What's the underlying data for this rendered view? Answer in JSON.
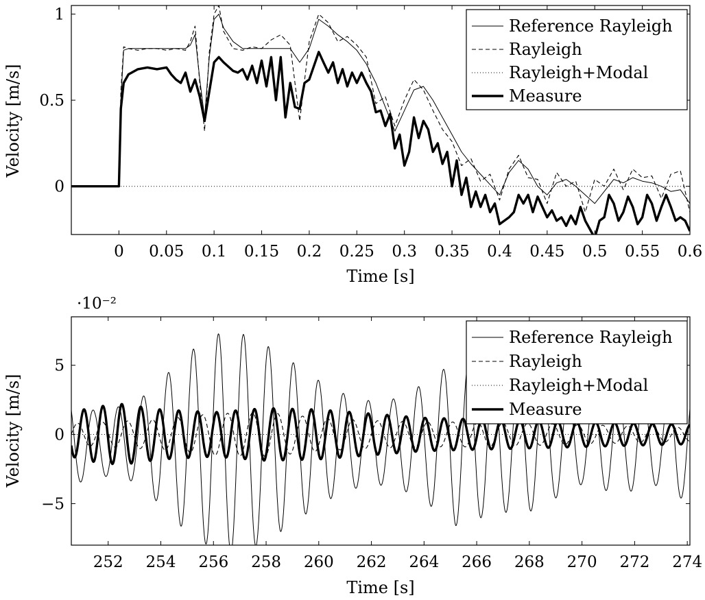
{
  "chart_data": [
    {
      "type": "line",
      "xlabel": "Time [s]",
      "ylabel": "Velocity [m/s]",
      "xlim": [
        -0.05,
        0.6
      ],
      "ylim": [
        -0.28,
        1.05
      ],
      "xticks": [
        0,
        0.05,
        0.1,
        0.15,
        0.2,
        0.25,
        0.3,
        0.35,
        0.4,
        0.45,
        0.5,
        0.55,
        0.6
      ],
      "xtick_labels": [
        "0",
        "0.05",
        "0.1",
        "0.15",
        "0.2",
        "0.25",
        "0.3",
        "0.35",
        "0.4",
        "0.45",
        "0.5",
        "0.55",
        "0.6"
      ],
      "yticks": [
        0,
        0.5,
        1
      ],
      "ytick_labels": [
        "0",
        "0.5",
        "1"
      ],
      "legend_position": "top-right",
      "series": [
        {
          "name": "Reference Rayleigh",
          "style": "solid-thin",
          "x": [
            -0.05,
            0.0,
            0.002,
            0.005,
            0.01,
            0.02,
            0.03,
            0.04,
            0.05,
            0.06,
            0.07,
            0.075,
            0.08,
            0.085,
            0.09,
            0.095,
            0.1,
            0.105,
            0.11,
            0.12,
            0.13,
            0.14,
            0.15,
            0.16,
            0.17,
            0.18,
            0.19,
            0.2,
            0.21,
            0.22,
            0.23,
            0.24,
            0.25,
            0.26,
            0.27,
            0.28,
            0.29,
            0.3,
            0.31,
            0.32,
            0.33,
            0.34,
            0.35,
            0.36,
            0.37,
            0.38,
            0.39,
            0.4,
            0.41,
            0.42,
            0.43,
            0.44,
            0.45,
            0.46,
            0.47,
            0.48,
            0.49,
            0.5,
            0.51,
            0.52,
            0.53,
            0.54,
            0.55,
            0.56,
            0.57,
            0.58,
            0.59,
            0.6
          ],
          "y": [
            0,
            0,
            0.5,
            0.79,
            0.8,
            0.8,
            0.8,
            0.8,
            0.8,
            0.8,
            0.8,
            0.82,
            0.88,
            0.62,
            0.4,
            0.75,
            0.97,
            1.0,
            0.92,
            0.84,
            0.8,
            0.8,
            0.8,
            0.8,
            0.8,
            0.8,
            0.72,
            0.8,
            0.97,
            0.93,
            0.88,
            0.84,
            0.79,
            0.71,
            0.6,
            0.46,
            0.32,
            0.44,
            0.56,
            0.58,
            0.5,
            0.4,
            0.3,
            0.2,
            0.13,
            0.07,
            0.01,
            -0.05,
            0.08,
            0.15,
            0.1,
            0.0,
            -0.05,
            0.02,
            0.04,
            0.0,
            -0.05,
            -0.1,
            -0.03,
            0.04,
            0.02,
            0.05,
            0.03,
            0.02,
            0.0,
            -0.03,
            -0.02,
            -0.1
          ]
        },
        {
          "name": "Rayleigh",
          "style": "dashed",
          "x": [
            -0.05,
            0.0,
            0.002,
            0.005,
            0.01,
            0.02,
            0.03,
            0.04,
            0.05,
            0.06,
            0.07,
            0.075,
            0.08,
            0.085,
            0.09,
            0.095,
            0.1,
            0.105,
            0.11,
            0.12,
            0.13,
            0.14,
            0.15,
            0.16,
            0.17,
            0.18,
            0.19,
            0.2,
            0.21,
            0.22,
            0.23,
            0.24,
            0.25,
            0.26,
            0.27,
            0.28,
            0.29,
            0.3,
            0.31,
            0.32,
            0.33,
            0.34,
            0.35,
            0.36,
            0.37,
            0.38,
            0.39,
            0.4,
            0.41,
            0.42,
            0.43,
            0.44,
            0.45,
            0.46,
            0.47,
            0.48,
            0.49,
            0.5,
            0.51,
            0.52,
            0.53,
            0.54,
            0.55,
            0.56,
            0.57,
            0.58,
            0.59,
            0.6
          ],
          "y": [
            0,
            0,
            0.55,
            0.81,
            0.8,
            0.79,
            0.8,
            0.8,
            0.79,
            0.8,
            0.79,
            0.84,
            0.93,
            0.6,
            0.32,
            0.78,
            1.0,
            1.05,
            0.9,
            0.8,
            0.79,
            0.81,
            0.8,
            0.85,
            0.88,
            0.82,
            0.38,
            0.84,
            1.0,
            0.95,
            0.84,
            0.87,
            0.82,
            0.75,
            0.48,
            0.52,
            0.35,
            0.5,
            0.62,
            0.56,
            0.44,
            0.33,
            0.26,
            0.12,
            0.16,
            0.03,
            0.07,
            -0.08,
            0.1,
            0.18,
            0.05,
            0.04,
            -0.1,
            0.08,
            0.0,
            0.03,
            -0.15,
            0.04,
            0.0,
            0.1,
            -0.02,
            0.1,
            0.05,
            0.06,
            -0.07,
            0.07,
            0.09,
            -0.15
          ]
        },
        {
          "name": "Rayleigh+Modal",
          "style": "dotted",
          "x": [
            -0.05,
            0.6
          ],
          "y": [
            0,
            0
          ]
        },
        {
          "name": "Measure",
          "style": "solid-thick",
          "x": [
            -0.05,
            -0.01,
            0.0,
            0.002,
            0.005,
            0.01,
            0.02,
            0.03,
            0.04,
            0.05,
            0.055,
            0.06,
            0.065,
            0.07,
            0.075,
            0.08,
            0.085,
            0.09,
            0.095,
            0.1,
            0.105,
            0.11,
            0.12,
            0.125,
            0.13,
            0.135,
            0.14,
            0.145,
            0.15,
            0.155,
            0.16,
            0.165,
            0.17,
            0.175,
            0.18,
            0.185,
            0.19,
            0.195,
            0.2,
            0.21,
            0.215,
            0.22,
            0.225,
            0.23,
            0.235,
            0.24,
            0.245,
            0.25,
            0.255,
            0.26,
            0.265,
            0.27,
            0.275,
            0.28,
            0.285,
            0.29,
            0.295,
            0.3,
            0.305,
            0.31,
            0.315,
            0.32,
            0.325,
            0.33,
            0.335,
            0.34,
            0.345,
            0.35,
            0.355,
            0.36,
            0.365,
            0.37,
            0.375,
            0.38,
            0.385,
            0.39,
            0.395,
            0.4,
            0.405,
            0.41,
            0.415,
            0.42,
            0.425,
            0.43,
            0.435,
            0.44,
            0.445,
            0.45,
            0.455,
            0.46,
            0.465,
            0.47,
            0.475,
            0.48,
            0.485,
            0.49,
            0.495,
            0.5,
            0.505,
            0.51,
            0.515,
            0.52,
            0.525,
            0.53,
            0.535,
            0.54,
            0.545,
            0.55,
            0.555,
            0.56,
            0.565,
            0.57,
            0.575,
            0.58,
            0.585,
            0.59,
            0.595,
            0.6
          ],
          "y": [
            0,
            0,
            0,
            0.45,
            0.6,
            0.65,
            0.68,
            0.69,
            0.68,
            0.69,
            0.65,
            0.62,
            0.6,
            0.66,
            0.55,
            0.62,
            0.52,
            0.38,
            0.55,
            0.72,
            0.75,
            0.72,
            0.67,
            0.66,
            0.68,
            0.62,
            0.7,
            0.6,
            0.73,
            0.58,
            0.75,
            0.5,
            0.75,
            0.4,
            0.6,
            0.46,
            0.45,
            0.6,
            0.62,
            0.78,
            0.72,
            0.66,
            0.72,
            0.6,
            0.68,
            0.58,
            0.66,
            0.6,
            0.66,
            0.6,
            0.55,
            0.43,
            0.44,
            0.35,
            0.42,
            0.22,
            0.3,
            0.12,
            0.2,
            0.4,
            0.28,
            0.38,
            0.33,
            0.2,
            0.25,
            0.13,
            0.2,
            0.0,
            0.15,
            -0.05,
            0.05,
            -0.12,
            -0.03,
            -0.12,
            -0.05,
            -0.15,
            -0.1,
            -0.22,
            -0.2,
            -0.18,
            -0.15,
            -0.05,
            -0.1,
            -0.05,
            -0.15,
            -0.06,
            -0.12,
            -0.18,
            -0.14,
            -0.2,
            -0.18,
            -0.23,
            -0.17,
            -0.22,
            -0.12,
            -0.2,
            -0.25,
            -0.3,
            -0.2,
            -0.18,
            -0.05,
            -0.1,
            -0.2,
            -0.15,
            -0.06,
            -0.12,
            -0.22,
            -0.18,
            -0.05,
            -0.1,
            -0.2,
            -0.12,
            -0.05,
            -0.12,
            -0.2,
            -0.18,
            -0.2,
            -0.26
          ]
        }
      ]
    },
    {
      "type": "line",
      "xlabel": "Time [s]",
      "ylabel": "Velocity [m/s]",
      "y_scale_label": "·10⁻²",
      "xlim": [
        250.6,
        274.1
      ],
      "ylim": [
        -8.0,
        8.5
      ],
      "xticks": [
        252,
        254,
        256,
        258,
        260,
        262,
        264,
        266,
        268,
        270,
        272,
        274
      ],
      "xtick_labels": [
        "252",
        "254",
        "256",
        "258",
        "260",
        "262",
        "264",
        "266",
        "268",
        "270",
        "272",
        "274"
      ],
      "yticks": [
        -5,
        0,
        5
      ],
      "ytick_labels": [
        "−5",
        "0",
        "5"
      ],
      "legend_position": "top-right",
      "series": [
        {
          "name": "Reference Rayleigh",
          "style": "solid-thin",
          "osc": {
            "period": 0.95,
            "phase": 250.25,
            "amp_t": [
              250.6,
              251.5,
              253.0,
              254.0,
              255.0,
              256.3,
              257.3,
              258.5,
              260.0,
              261.0,
              262.0,
              263.0,
              264.2,
              265.2,
              266.2,
              267.2,
              268.0,
              269.0,
              270.0,
              271.0,
              272.0,
              273.0,
              273.6,
              274.1
            ],
            "amp_v": [
              3.2,
              2.3,
              2.8,
              4.5,
              6.5,
              8.0,
              7.8,
              6.5,
              4.5,
              3.5,
              3.0,
              3.2,
              4.5,
              6.0,
              5.4,
              5.0,
              5.0,
              4.0,
              3.0,
              3.5,
              3.5,
              3.0,
              4.0,
              4.0
            ],
            "offset": -0.6
          }
        },
        {
          "name": "Rayleigh",
          "style": "dashed",
          "osc": {
            "period": 0.95,
            "phase": 250.6,
            "amp_t": [
              250.6,
              252.0,
              254.0,
              256.0,
              258.0,
              260.0,
              262.0,
              264.0,
              266.0,
              268.0,
              270.0,
              272.0,
              274.1
            ],
            "amp_v": [
              0.8,
              0.9,
              1.1,
              1.5,
              1.6,
              1.2,
              1.0,
              0.9,
              0.9,
              0.8,
              0.7,
              0.6,
              0.5
            ],
            "offset": 0.0
          }
        },
        {
          "name": "Rayleigh+Modal",
          "style": "dotted",
          "x": [
            250.6,
            274.1
          ],
          "y": [
            0,
            0
          ]
        },
        {
          "name": "Measure",
          "style": "solid-thick",
          "osc": {
            "period": 0.72,
            "phase": 250.9,
            "amp_t": [
              250.6,
              251.5,
              252.5,
              254.0,
              256.0,
              258.0,
              260.0,
              262.0,
              264.0,
              266.0,
              268.0,
              270.0,
              272.0,
              274.1
            ],
            "amp_v": [
              1.6,
              2.0,
              2.2,
              1.8,
              1.6,
              1.9,
              1.8,
              1.5,
              1.2,
              1.1,
              1.0,
              0.9,
              0.8,
              0.7
            ],
            "offset": 0.0
          }
        }
      ]
    }
  ]
}
